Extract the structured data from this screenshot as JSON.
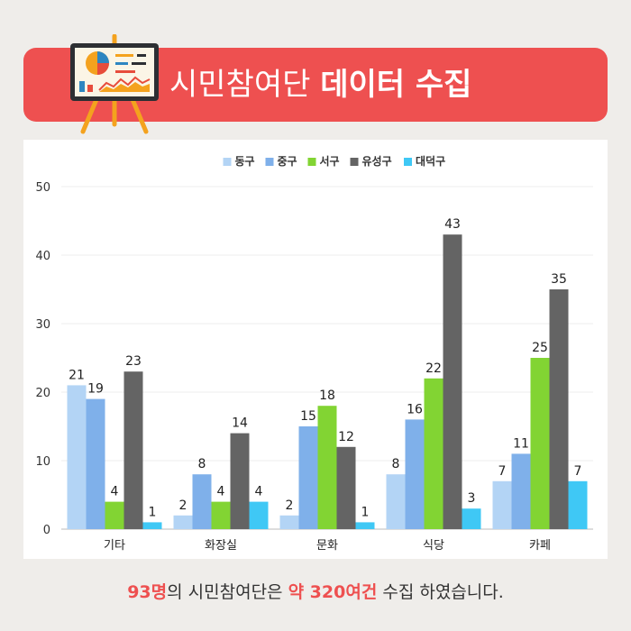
{
  "header": {
    "title_light": "시민참여단",
    "title_bold": "데이터 수집"
  },
  "icons": {
    "header": "presentation-easel-icon"
  },
  "colors": {
    "banner": "#ee5050",
    "background": "#efedea"
  },
  "footer": {
    "part1": "93명",
    "part2": "의 시민참여단은 ",
    "part3": "약 320여건",
    "part4": " 수집 하였습니다."
  },
  "chart_data": {
    "type": "bar",
    "categories": [
      "기타",
      "화장실",
      "문화",
      "식당",
      "카페"
    ],
    "series": [
      {
        "name": "동구",
        "color": "#b3d4f5",
        "values": [
          21,
          2,
          2,
          8,
          7
        ]
      },
      {
        "name": "중구",
        "color": "#7fb0ea",
        "values": [
          19,
          8,
          15,
          16,
          11
        ]
      },
      {
        "name": "서구",
        "color": "#82d433",
        "values": [
          4,
          4,
          18,
          22,
          25
        ]
      },
      {
        "name": "유성구",
        "color": "#646464",
        "values": [
          23,
          14,
          12,
          43,
          35
        ]
      },
      {
        "name": "대덕구",
        "color": "#3fc8f5",
        "values": [
          1,
          4,
          1,
          3,
          7
        ]
      }
    ],
    "ylim": [
      0,
      50
    ],
    "yticks": [
      0,
      10,
      20,
      30,
      40,
      50
    ],
    "legend": "top",
    "grid": true
  }
}
